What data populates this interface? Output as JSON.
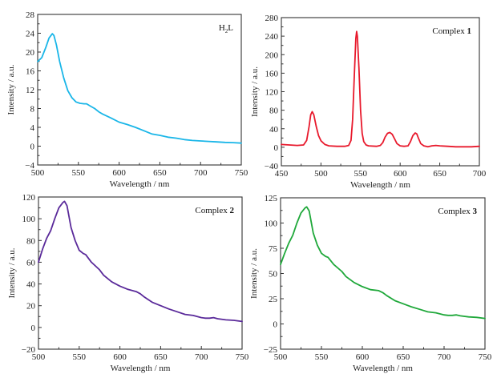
{
  "chart_data": [
    {
      "id": "h2l",
      "type": "line",
      "title": "",
      "annotation": {
        "text": "H",
        "sub": "2",
        "suffix": "L",
        "bold_part": ""
      },
      "xlabel": "Wavelength / nm",
      "ylabel": "Intensity / a.u.",
      "xlim": [
        500,
        750
      ],
      "ylim": [
        -4,
        28
      ],
      "xticks": [
        500,
        550,
        600,
        650,
        700,
        750
      ],
      "yticks": [
        -4,
        0,
        4,
        8,
        12,
        16,
        20,
        24,
        28
      ],
      "grid": false,
      "color": "#1ab6e8",
      "series": [
        {
          "name": "H2L",
          "x": [
            500,
            505,
            510,
            514,
            518,
            520,
            523,
            527,
            532,
            537,
            542,
            547,
            552,
            557,
            560,
            565,
            570,
            575,
            580,
            590,
            600,
            610,
            620,
            630,
            640,
            650,
            660,
            670,
            680,
            690,
            700,
            710,
            720,
            730,
            740,
            750
          ],
          "y": [
            18.0,
            18.8,
            21.0,
            23.0,
            23.9,
            23.5,
            21.5,
            18.0,
            14.5,
            11.8,
            10.3,
            9.4,
            9.1,
            9.0,
            9.0,
            8.5,
            8.0,
            7.3,
            6.8,
            6.0,
            5.1,
            4.6,
            4.0,
            3.3,
            2.6,
            2.3,
            1.9,
            1.7,
            1.4,
            1.2,
            1.1,
            1.0,
            0.9,
            0.8,
            0.75,
            0.65
          ]
        }
      ]
    },
    {
      "id": "complex1",
      "type": "line",
      "title": "",
      "annotation": {
        "text": "Complex ",
        "sub": "",
        "suffix": "",
        "bold_part": "1"
      },
      "xlabel": "Wavelength / nm",
      "ylabel": "Intensity / a.u.",
      "xlim": [
        450,
        700
      ],
      "ylim": [
        -40,
        280
      ],
      "xticks": [
        450,
        500,
        550,
        600,
        650,
        700
      ],
      "yticks": [
        -40,
        0,
        40,
        80,
        120,
        160,
        200,
        240,
        280
      ],
      "grid": false,
      "color": "#e8192c",
      "series": [
        {
          "name": "Complex 1",
          "x": [
            450,
            460,
            470,
            478,
            482,
            485,
            487,
            489,
            491,
            494,
            497,
            500,
            505,
            510,
            520,
            530,
            535,
            538,
            540,
            542,
            544,
            545,
            546,
            548,
            550,
            552,
            554,
            557,
            560,
            570,
            575,
            578,
            581,
            584,
            587,
            590,
            593,
            596,
            600,
            605,
            610,
            613,
            616,
            619,
            621,
            623,
            626,
            630,
            635,
            640,
            645,
            650,
            660,
            670,
            680,
            690,
            700
          ],
          "y": [
            6,
            5,
            4,
            5,
            15,
            45,
            70,
            77,
            70,
            45,
            25,
            14,
            6,
            3,
            2,
            2,
            4,
            15,
            60,
            150,
            235,
            250,
            240,
            170,
            80,
            30,
            12,
            5,
            3,
            2,
            4,
            10,
            22,
            30,
            32,
            28,
            18,
            8,
            3,
            2,
            3,
            12,
            25,
            31,
            29,
            20,
            8,
            3,
            1,
            3,
            4,
            3,
            2,
            1,
            1,
            1,
            2
          ]
        }
      ]
    },
    {
      "id": "complex2",
      "type": "line",
      "title": "",
      "annotation": {
        "text": "Complex ",
        "sub": "",
        "suffix": "",
        "bold_part": "2"
      },
      "xlabel": "Wavelength / nm",
      "ylabel": "Intensity / a.u.",
      "xlim": [
        500,
        750
      ],
      "ylim": [
        -20,
        120
      ],
      "xticks": [
        500,
        550,
        600,
        650,
        700,
        750
      ],
      "yticks": [
        -20,
        0,
        20,
        40,
        60,
        80,
        100,
        120
      ],
      "grid": false,
      "color": "#5a2a9a",
      "series": [
        {
          "name": "Complex 2",
          "x": [
            500,
            505,
            510,
            515,
            520,
            525,
            530,
            532,
            535,
            540,
            545,
            550,
            555,
            558,
            565,
            575,
            580,
            590,
            600,
            610,
            620,
            625,
            630,
            640,
            650,
            660,
            670,
            680,
            690,
            700,
            705,
            710,
            715,
            720,
            730,
            740,
            750
          ],
          "y": [
            60,
            72,
            82,
            89,
            100,
            110,
            115,
            116,
            112,
            92,
            80,
            71,
            68,
            67,
            60,
            53,
            48,
            42,
            38,
            35,
            33,
            31,
            28,
            23,
            20,
            17,
            14.5,
            12,
            11,
            9,
            8.5,
            8.5,
            9,
            8,
            7,
            6.5,
            5.5
          ]
        }
      ]
    },
    {
      "id": "complex3",
      "type": "line",
      "title": "",
      "annotation": {
        "text": "Complex ",
        "sub": "",
        "suffix": "",
        "bold_part": "3"
      },
      "xlabel": "Wavelength / nm",
      "ylabel": "Intensity / a.u.",
      "xlim": [
        500,
        750
      ],
      "ylim": [
        -25,
        125
      ],
      "xticks": [
        500,
        550,
        600,
        650,
        700,
        750
      ],
      "yticks": [
        -25,
        0,
        25,
        50,
        75,
        100,
        125
      ],
      "grid": false,
      "color": "#1fa83a",
      "series": [
        {
          "name": "Complex 3",
          "x": [
            500,
            505,
            510,
            515,
            520,
            525,
            530,
            532,
            535,
            540,
            545,
            550,
            555,
            558,
            565,
            575,
            580,
            590,
            600,
            610,
            620,
            625,
            630,
            640,
            650,
            660,
            670,
            680,
            690,
            700,
            705,
            710,
            715,
            720,
            730,
            740,
            750
          ],
          "y": [
            59,
            70,
            80,
            88,
            100,
            110,
            115,
            116,
            112,
            90,
            78,
            70,
            67,
            66,
            59,
            52,
            47,
            41,
            37,
            34,
            33,
            31,
            28,
            23,
            20,
            17,
            14.5,
            12,
            11,
            9,
            8.5,
            8.5,
            9,
            8,
            7,
            6.5,
            5.5
          ]
        }
      ]
    }
  ]
}
